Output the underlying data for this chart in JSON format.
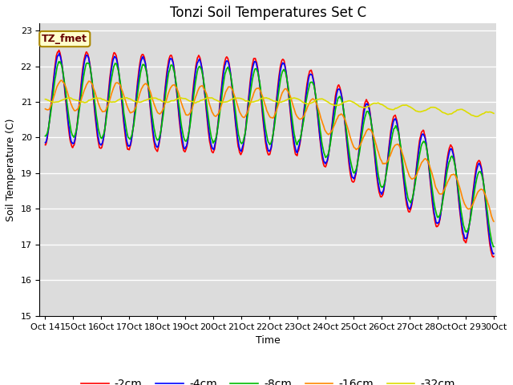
{
  "title": "Tonzi Soil Temperatures Set C",
  "xlabel": "Time",
  "ylabel": "Soil Temperature (C)",
  "ylim": [
    15.0,
    23.2
  ],
  "yticks": [
    15.0,
    16.0,
    17.0,
    18.0,
    19.0,
    20.0,
    21.0,
    22.0,
    23.0
  ],
  "legend_labels": [
    "-2cm",
    "-4cm",
    "-8cm",
    "-16cm",
    "-32cm"
  ],
  "legend_colors": [
    "#ff0000",
    "#0000ff",
    "#00bb00",
    "#ff8800",
    "#dddd00"
  ],
  "annotation_text": "TZ_fmet",
  "annotation_bg": "#ffffcc",
  "annotation_border": "#aa8800",
  "bg_color": "#dcdcdc",
  "fig_bg": "#ffffff",
  "title_fontsize": 12,
  "label_fontsize": 9,
  "tick_fontsize": 8
}
